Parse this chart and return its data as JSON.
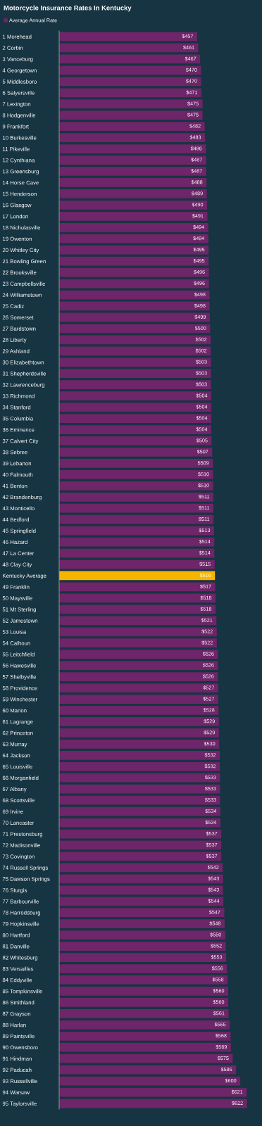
{
  "chart_data": {
    "type": "bar",
    "orientation": "horizontal",
    "title": "Motorcycle Insurance Rates In Kentucky",
    "legend": "top left",
    "data_labels": false,
    "categories": [
      "1 Morehead",
      "2 Corbin",
      "3 Vanceburg",
      "4 Georgetown",
      "5 Middlesboro",
      "6 Salyersville",
      "7 Lexington",
      "8 Hodgenville",
      "9 Frankfort",
      "10 Burkesville",
      "11 Pikeville",
      "12 Cynthiana",
      "13 Greensburg",
      "14 Horse Cave",
      "15 Henderson",
      "16 Glasgow",
      "17 London",
      "18 Nicholasville",
      "19 Owenton",
      "20 Whitley City",
      "21 Bowling Green",
      "22 Brooksville",
      "23 Campbellsville",
      "24 Williamstown",
      "25 Cadiz",
      "26 Somerset",
      "27 Bardstown",
      "28 Liberty",
      "29 Ashland",
      "30 Elizabethtown",
      "31 Shepherdsville",
      "32 Lawrenceburg",
      "33 Richmond",
      "34 Stanford",
      "35 Columbia",
      "36 Eminence",
      "37 Calvert City",
      "38 Sebree",
      "39 Lebanon",
      "40 Falmouth",
      "41 Benton",
      "42 Brandenburg",
      "43 Monticello",
      "44 Bedford",
      "45 Springfield",
      "46 Hazard",
      "47 La Center",
      "48 Clay City",
      "Kentucky Average",
      "49 Franklin",
      "50 Maysville",
      "51 Mt Sterling",
      "52 Jamestown",
      "53 Louisa",
      "54 Calhoun",
      "55 Leitchfield",
      "56 Hawesville",
      "57 Shelbyville",
      "58 Providence",
      "59 Winchester",
      "60 Marion",
      "61 Lagrange",
      "62 Princeton",
      "63 Murray",
      "64 Jackson",
      "65 Louisville",
      "66 Morganfield",
      "67 Albany",
      "68 Scottsville",
      "69 Irvine",
      "70 Lancaster",
      "71 Prestonsburg",
      "72 Madisonville",
      "73 Covington",
      "74 Russell Springs",
      "75 Dawson Springs",
      "76 Sturgis",
      "77 Barbourville",
      "78 Harrodsburg",
      "79 Hopkinsville",
      "80 Hartford",
      "81 Danville",
      "82 Whitesburg",
      "83 Versailles",
      "84 Eddyville",
      "85 Tompkinsville",
      "86 Smithland",
      "87 Grayson",
      "88 Harlan",
      "89 Paintsville",
      "90 Owensboro",
      "91 Hindman",
      "92 Paducah",
      "93 Russellville",
      "94 Warsaw",
      "95 Taylorsville"
    ],
    "series": [
      {
        "name": "Average Annual Rate",
        "color": "#6e2569",
        "values": [
          457,
          461,
          467,
          470,
          470,
          471,
          475,
          475,
          482,
          483,
          486,
          487,
          487,
          488,
          489,
          490,
          491,
          494,
          494,
          495,
          495,
          496,
          496,
          498,
          498,
          499,
          500,
          502,
          502,
          503,
          503,
          503,
          504,
          504,
          504,
          504,
          505,
          507,
          509,
          510,
          510,
          511,
          511,
          511,
          513,
          514,
          514,
          515,
          516,
          517,
          518,
          518,
          521,
          522,
          522,
          526,
          526,
          526,
          527,
          527,
          528,
          529,
          529,
          530,
          532,
          532,
          533,
          533,
          533,
          534,
          534,
          537,
          537,
          537,
          542,
          543,
          543,
          544,
          547,
          548,
          550,
          552,
          553,
          556,
          558,
          560,
          560,
          561,
          565,
          568,
          569,
          575,
          586,
          600,
          621,
          622
        ],
        "colors": [
          "#6e2569",
          "#6e2569",
          "#6e2569",
          "#6e2569",
          "#6e2569",
          "#6e2569",
          "#6e2569",
          "#6e2569",
          "#6e2569",
          "#6e2569",
          "#6e2569",
          "#6e2569",
          "#6e2569",
          "#6e2569",
          "#6e2569",
          "#6e2569",
          "#6e2569",
          "#6e2569",
          "#6e2569",
          "#6e2569",
          "#6e2569",
          "#6e2569",
          "#6e2569",
          "#6e2569",
          "#6e2569",
          "#6e2569",
          "#6e2569",
          "#6e2569",
          "#6e2569",
          "#6e2569",
          "#6e2569",
          "#6e2569",
          "#6e2569",
          "#6e2569",
          "#6e2569",
          "#6e2569",
          "#6e2569",
          "#6e2569",
          "#6e2569",
          "#6e2569",
          "#6e2569",
          "#6e2569",
          "#6e2569",
          "#6e2569",
          "#6e2569",
          "#6e2569",
          "#6e2569",
          "#6e2569",
          "#f8b500",
          "#6e2569",
          "#6e2569",
          "#6e2569",
          "#6e2569",
          "#6e2569",
          "#6e2569",
          "#6e2569",
          "#6e2569",
          "#6e2569",
          "#6e2569",
          "#6e2569",
          "#6e2569",
          "#6e2569",
          "#6e2569",
          "#6e2569",
          "#6e2569",
          "#6e2569",
          "#6e2569",
          "#6e2569",
          "#6e2569",
          "#6e2569",
          "#6e2569",
          "#6e2569",
          "#6e2569",
          "#6e2569",
          "#6e2569",
          "#6e2569",
          "#6e2569",
          "#6e2569",
          "#6e2569",
          "#6e2569",
          "#6e2569",
          "#6e2569",
          "#6e2569",
          "#6e2569",
          "#6e2569",
          "#6e2569",
          "#6e2569",
          "#6e2569",
          "#6e2569",
          "#6e2569",
          "#6e2569",
          "#6e2569",
          "#6e2569",
          "#6e2569",
          "#6e2569",
          "#6e2569"
        ],
        "value_labels": [
          "$457",
          "$461",
          "$467",
          "$470",
          "$470",
          "$471",
          "$475",
          "$475",
          "$482",
          "$483",
          "$486",
          "$487",
          "$487",
          "$488",
          "$489",
          "$490",
          "$491",
          "$494",
          "$494",
          "$495",
          "$495",
          "$496",
          "$496",
          "$498",
          "$498",
          "$499",
          "$500",
          "$502",
          "$502",
          "$503",
          "$503",
          "$503",
          "$504",
          "$504",
          "$504",
          "$504",
          "$505",
          "$507",
          "$509",
          "$510",
          "$510",
          "$511",
          "$511",
          "$511",
          "$513",
          "$514",
          "$514",
          "$515",
          "$516",
          "$517",
          "$518",
          "$518",
          "$521",
          "$522",
          "$522",
          "$526",
          "$526",
          "$526",
          "$527",
          "$527",
          "$528",
          "$529",
          "$529",
          "$530",
          "$532",
          "$532",
          "$533",
          "$533",
          "$533",
          "$534",
          "$534",
          "$537",
          "$537",
          "$537",
          "$542",
          "$543",
          "$543",
          "$544",
          "$547",
          "$548",
          "$550",
          "$552",
          "$553",
          "$556",
          "$558",
          "$560",
          "$560",
          "$561",
          "$565",
          "$568",
          "$569",
          "$575",
          "$586",
          "$600",
          "$621",
          "$622"
        ]
      }
    ]
  }
}
